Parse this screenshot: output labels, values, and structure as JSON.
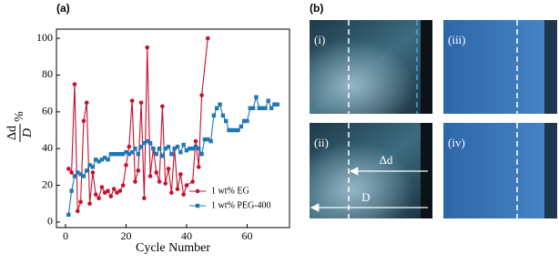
{
  "chart_data": {
    "type": "line",
    "panel_label": "(a)",
    "xlabel": "Cycle Number",
    "ylabel": {
      "numerator": "Δd",
      "denominator": "D",
      "suffix": "%"
    },
    "xlim": [
      -3,
      74
    ],
    "ylim": [
      -3,
      105
    ],
    "xticks": [
      0,
      20,
      40,
      60
    ],
    "yticks": [
      0,
      20,
      40,
      60,
      80,
      100
    ],
    "legend": "lower right",
    "series": [
      {
        "name": "1 wt% EG",
        "color": "#c8102e",
        "marker": "circle",
        "x": [
          1,
          2,
          3,
          4,
          5,
          6,
          7,
          8,
          9,
          10,
          11,
          12,
          13,
          14,
          15,
          16,
          17,
          18,
          19,
          20,
          21,
          22,
          23,
          24,
          25,
          26,
          27,
          28,
          29,
          30,
          31,
          32,
          33,
          34,
          35,
          36,
          37,
          38,
          39,
          40,
          42,
          43,
          44,
          45,
          47
        ],
        "values": [
          29,
          27,
          75,
          6,
          11,
          55,
          65,
          10,
          27,
          15,
          13,
          19,
          16,
          17,
          14,
          18,
          16,
          17,
          20,
          31,
          41,
          66,
          22,
          28,
          65,
          13,
          95,
          25,
          40,
          27,
          22,
          63,
          21,
          29,
          16,
          40,
          18,
          26,
          15,
          20,
          22,
          44,
          30,
          69,
          100
        ]
      },
      {
        "name": "1 wt% PEG-400",
        "color": "#1f77b4",
        "marker": "square",
        "x": [
          1,
          2,
          3,
          4,
          5,
          6,
          7,
          8,
          9,
          10,
          11,
          12,
          13,
          14,
          15,
          16,
          17,
          18,
          19,
          20,
          21,
          22,
          23,
          24,
          25,
          26,
          27,
          28,
          29,
          30,
          31,
          32,
          33,
          34,
          35,
          36,
          37,
          38,
          39,
          40,
          41,
          42,
          43,
          44,
          45,
          46,
          47,
          48,
          49,
          50,
          51,
          52,
          53,
          54,
          55,
          56,
          57,
          58,
          59,
          60,
          61,
          62,
          63,
          64,
          65,
          66,
          67,
          68,
          69,
          70
        ],
        "values": [
          4,
          17,
          25,
          27,
          26,
          25,
          28,
          31,
          30,
          34,
          33,
          34,
          35,
          34,
          37,
          37,
          37,
          37,
          37,
          38,
          37,
          38,
          40,
          37,
          41,
          43,
          44,
          43,
          40,
          37,
          40,
          36,
          40,
          41,
          37,
          40,
          41,
          38,
          42,
          39,
          40,
          40,
          41,
          40,
          37,
          45,
          45,
          44,
          58,
          62,
          64,
          58,
          55,
          50,
          50,
          50,
          50,
          52,
          55,
          55,
          62,
          62,
          68,
          62,
          62,
          62,
          66,
          62,
          64,
          64
        ]
      }
    ]
  },
  "panel_b": {
    "label": "(b)",
    "images": [
      "(i)",
      "(ii)",
      "(iii)",
      "(iv)"
    ],
    "arrow_short": "Δd",
    "arrow_long": "D"
  }
}
